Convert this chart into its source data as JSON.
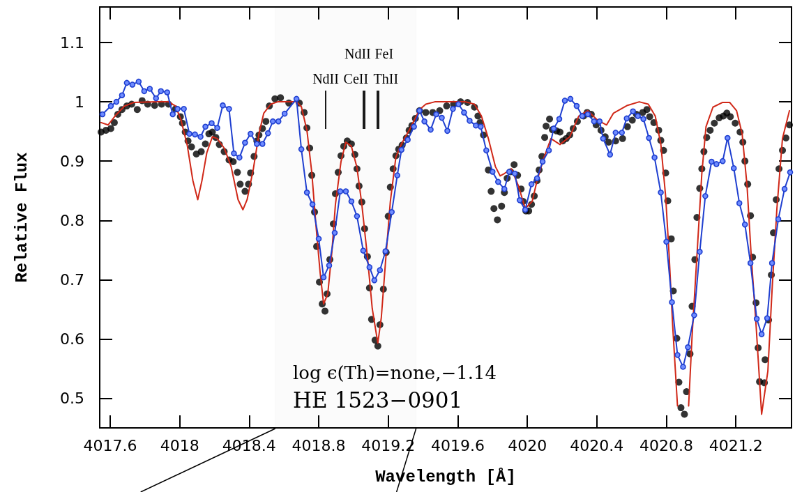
{
  "chart_data": {
    "type": "line",
    "xlabel": "Wavelength [Å]",
    "ylabel": "Relative Flux",
    "xlim": [
      4017.54,
      4021.52
    ],
    "ylim": [
      0.45,
      1.16
    ],
    "xticks": [
      4017.6,
      4018,
      4018.4,
      4018.8,
      4019.2,
      4019.6,
      4020,
      4020.4,
      4020.8,
      4021.2
    ],
    "yticks": [
      0.5,
      0.6,
      0.7,
      0.8,
      0.9,
      1,
      1.1
    ],
    "grid": false,
    "bands": [
      {
        "axis": "x",
        "from": 4018.55,
        "to": 4019.36,
        "color": "#000000"
      }
    ],
    "ref_lines": [
      {
        "axis": "x",
        "value": 4018.84,
        "label": "NdII"
      },
      {
        "axis": "x",
        "value": 4019.065,
        "label": "CeII"
      },
      {
        "axis": "x",
        "value": 4019.055,
        "label": "NdII"
      },
      {
        "axis": "x",
        "value": 4019.135,
        "label": "ThII"
      },
      {
        "axis": "x",
        "value": 4019.145,
        "label": "FeI"
      }
    ],
    "annotations": [
      "log ϵ(Th)=none,−1.14",
      "HE 1523−0901"
    ],
    "series": [
      {
        "color": "#d02818",
        "marker": "none",
        "line_style": "solid",
        "x": [
          4017.548,
          4017.588,
          4017.628,
          4017.684,
          4017.736,
          4017.868,
          4017.936,
          4017.976,
          4018.008,
          4018.044,
          4018.076,
          4018.104,
          4018.128,
          4018.156,
          4018.188,
          4018.216,
          4018.256,
          4018.296,
          4018.336,
          4018.364,
          4018.388,
          4018.424,
          4018.456,
          4018.484,
          4018.524,
          4018.564,
          4018.672,
          4018.7,
          4018.732,
          4018.76,
          4018.784,
          4018.808,
          4018.828,
          4018.852,
          4018.876,
          4018.896,
          4018.928,
          4018.956,
          4018.988,
          4019.02,
          4019.048,
          4019.08,
          4019.108,
          4019.14,
          4019.16,
          4019.184,
          4019.212,
          4019.244,
          4019.276,
          4019.32,
          4019.38,
          4019.416,
          4019.468,
          4019.644,
          4019.696,
          4019.736,
          4019.776,
          4019.816,
          4019.844,
          4019.868,
          4019.908,
          4019.948,
          4019.988,
          4020.028,
          4020.056,
          4020.096,
          4020.136,
          4020.188,
          4020.244,
          4020.296,
          4020.348,
          4020.404,
          4020.456,
          4020.496,
          4020.576,
          4020.644,
          4020.696,
          4020.736,
          4020.768,
          4020.796,
          4020.816,
          4020.836,
          4020.864,
          4020.876,
          4020.896,
          4020.916,
          4020.928,
          4020.948,
          4020.976,
          4021.004,
          4021.028,
          4021.068,
          4021.124,
          4021.164,
          4021.204,
          4021.236,
          4021.264,
          4021.288,
          4021.316,
          4021.348,
          4021.384,
          4021.408,
          4021.436,
          4021.468,
          4021.508
        ],
        "values": [
          0.965,
          0.961,
          0.976,
          0.993,
          0.999,
          1.0,
          1.0,
          0.993,
          0.969,
          0.926,
          0.867,
          0.835,
          0.867,
          0.914,
          0.941,
          0.938,
          0.922,
          0.891,
          0.835,
          0.818,
          0.835,
          0.887,
          0.946,
          0.981,
          0.996,
          1.0,
          1.0,
          0.992,
          0.952,
          0.881,
          0.792,
          0.712,
          0.659,
          0.676,
          0.748,
          0.827,
          0.899,
          0.932,
          0.925,
          0.889,
          0.827,
          0.739,
          0.651,
          0.593,
          0.636,
          0.729,
          0.832,
          0.907,
          0.929,
          0.952,
          0.987,
          0.996,
          1.0,
          1.0,
          0.996,
          0.976,
          0.938,
          0.891,
          0.875,
          0.879,
          0.887,
          0.859,
          0.82,
          0.832,
          0.867,
          0.906,
          0.938,
          0.928,
          0.941,
          0.976,
          0.985,
          0.969,
          0.961,
          0.981,
          0.994,
          1.0,
          0.996,
          0.976,
          0.929,
          0.84,
          0.741,
          0.624,
          0.487,
          null,
          null,
          null,
          0.487,
          0.605,
          0.741,
          0.879,
          0.958,
          0.991,
          0.999,
          0.999,
          0.985,
          0.946,
          0.859,
          0.741,
          0.624,
          0.473,
          0.546,
          0.682,
          0.82,
          0.938,
          0.985
        ]
      },
      {
        "type": "scatter",
        "color": "#000000",
        "marker": "circle",
        "x": [
          4017.548,
          4017.576,
          4017.604,
          4017.624,
          4017.644,
          4017.668,
          4017.696,
          4017.724,
          4017.756,
          4017.784,
          4017.816,
          4017.856,
          4017.896,
          4017.936,
          4017.976,
          4018.004,
          4018.016,
          4018.032,
          4018.048,
          4018.068,
          4018.096,
          4018.124,
          4018.148,
          4018.168,
          4018.188,
          4018.208,
          4018.228,
          4018.256,
          4018.284,
          4018.308,
          4018.332,
          4018.348,
          4018.376,
          4018.396,
          4018.408,
          4018.428,
          4018.444,
          4018.456,
          4018.476,
          4018.496,
          4018.516,
          4018.548,
          4018.58,
          4018.628,
          4018.688,
          4018.716,
          4018.732,
          4018.748,
          4018.76,
          4018.776,
          4018.788,
          4018.804,
          4018.82,
          4018.836,
          4018.848,
          4018.864,
          4018.884,
          4018.896,
          4018.912,
          4018.928,
          4018.944,
          4018.964,
          4018.988,
          4019.008,
          4019.02,
          4019.032,
          4019.048,
          4019.064,
          4019.08,
          4019.092,
          4019.104,
          4019.124,
          4019.14,
          4019.152,
          4019.172,
          4019.188,
          4019.2,
          4019.212,
          4019.228,
          4019.244,
          4019.26,
          4019.28,
          4019.304,
          4019.32,
          4019.336,
          4019.356,
          4019.38,
          4019.416,
          4019.456,
          4019.496,
          4019.536,
          4019.576,
          4019.616,
          4019.656,
          4019.696,
          4019.716,
          4019.728,
          4019.748,
          4019.776,
          4019.792,
          4019.808,
          4019.828,
          4019.852,
          4019.868,
          4019.884,
          4019.904,
          4019.924,
          4019.944,
          4019.964,
          4019.976,
          4019.992,
          4020.008,
          4020.024,
          4020.04,
          4020.056,
          4020.068,
          4020.084,
          4020.1,
          4020.108,
          4020.128,
          4020.144,
          4020.168,
          4020.188,
          4020.204,
          4020.224,
          4020.244,
          4020.264,
          4020.288,
          4020.324,
          4020.344,
          4020.368,
          4020.396,
          4020.424,
          4020.448,
          4020.468,
          4020.508,
          4020.548,
          4020.576,
          4020.604,
          4020.628,
          4020.664,
          4020.688,
          4020.704,
          4020.728,
          4020.756,
          4020.768,
          4020.784,
          4020.796,
          4020.808,
          4020.828,
          4020.84,
          4020.86,
          4020.872,
          4020.884,
          4020.904,
          4020.916,
          4020.936,
          4020.948,
          4020.964,
          4020.976,
          4020.992,
          4021.004,
          4021.016,
          4021.032,
          4021.052,
          4021.076,
          4021.104,
          4021.128,
          4021.148,
          4021.168,
          4021.196,
          4021.224,
          4021.24,
          4021.252,
          4021.268,
          4021.284,
          4021.296,
          4021.316,
          4021.328,
          4021.336,
          4021.364,
          4021.368,
          4021.388,
          4021.404,
          4021.416,
          4021.432,
          4021.448,
          4021.468,
          4021.488,
          4021.508
        ],
        "values": [
          0.949,
          0.952,
          0.955,
          0.965,
          0.979,
          0.987,
          0.993,
          0.996,
          0.987,
          1.002,
          0.996,
          0.994,
          0.996,
          0.996,
          0.988,
          0.975,
          0.964,
          0.949,
          0.934,
          0.924,
          0.912,
          0.916,
          0.929,
          0.946,
          0.949,
          0.94,
          0.928,
          0.916,
          0.902,
          0.899,
          0.881,
          0.861,
          0.849,
          0.861,
          0.88,
          0.908,
          0.934,
          0.944,
          0.955,
          0.967,
          0.993,
          1.005,
          1.007,
          0.998,
          0.998,
          0.982,
          0.956,
          0.922,
          0.876,
          0.814,
          0.756,
          0.696,
          0.659,
          0.647,
          0.676,
          0.734,
          0.794,
          0.845,
          0.881,
          0.909,
          0.925,
          0.934,
          0.929,
          0.911,
          0.887,
          0.858,
          0.831,
          0.786,
          0.739,
          0.686,
          0.633,
          0.598,
          0.588,
          0.624,
          0.684,
          0.746,
          0.807,
          0.856,
          0.887,
          0.909,
          0.92,
          0.927,
          0.939,
          0.952,
          0.96,
          0.972,
          0.985,
          0.982,
          0.982,
          0.985,
          0.993,
          0.996,
          1.0,
          0.999,
          0.991,
          0.976,
          0.965,
          0.944,
          0.885,
          0.849,
          0.82,
          0.801,
          0.824,
          0.847,
          0.871,
          0.882,
          0.894,
          0.876,
          0.853,
          0.832,
          0.816,
          0.816,
          0.827,
          0.841,
          0.867,
          0.885,
          0.908,
          0.94,
          0.959,
          0.971,
          0.953,
          0.951,
          0.949,
          0.934,
          0.938,
          0.944,
          0.955,
          0.967,
          0.976,
          0.982,
          0.979,
          0.961,
          0.952,
          0.941,
          0.932,
          0.934,
          0.938,
          0.958,
          0.969,
          0.979,
          0.982,
          0.987,
          0.975,
          0.965,
          0.952,
          0.935,
          0.918,
          0.88,
          0.833,
          0.769,
          0.681,
          0.601,
          0.527,
          0.484,
          0.473,
          0.511,
          0.575,
          0.655,
          0.734,
          0.805,
          0.854,
          0.887,
          0.916,
          0.94,
          0.952,
          0.964,
          0.973,
          0.976,
          0.981,
          0.975,
          0.964,
          0.949,
          0.932,
          0.9,
          0.861,
          0.808,
          0.738,
          0.661,
          0.585,
          0.528,
          0.526,
          0.565,
          0.632,
          0.708,
          0.779,
          0.835,
          0.887,
          0.918,
          0.939,
          0.961
        ]
      },
      {
        "color": "#1f3fd0",
        "marker": "circle",
        "line_style": "solid",
        "x": [
          4017.556,
          4017.604,
          4017.636,
          4017.668,
          4017.696,
          4017.728,
          4017.764,
          4017.796,
          4017.828,
          4017.864,
          4017.892,
          4017.928,
          4017.96,
          4017.988,
          4018.024,
          4018.056,
          4018.088,
          4018.12,
          4018.148,
          4018.184,
          4018.216,
          4018.248,
          4018.284,
          4018.312,
          4018.344,
          4018.376,
          4018.408,
          4018.444,
          4018.476,
          4018.508,
          4018.536,
          4018.568,
          4018.604,
          4018.672,
          4018.7,
          4018.732,
          4018.764,
          4018.8,
          4018.828,
          4018.86,
          4018.892,
          4018.924,
          4018.956,
          4018.988,
          4019.02,
          4019.056,
          4019.092,
          4019.12,
          4019.152,
          4019.184,
          4019.22,
          4019.252,
          4019.276,
          4019.312,
          4019.348,
          4019.38,
          4019.408,
          4019.444,
          4019.476,
          4019.508,
          4019.54,
          4019.572,
          4019.604,
          4019.636,
          4019.668,
          4019.704,
          4019.732,
          4019.764,
          4019.8,
          4019.832,
          4019.868,
          4019.896,
          4019.928,
          4019.956,
          4019.988,
          4020.024,
          4020.056,
          4020.088,
          4020.124,
          4020.152,
          4020.184,
          4020.216,
          4020.248,
          4020.284,
          4020.316,
          4020.348,
          4020.384,
          4020.416,
          4020.436,
          4020.476,
          4020.508,
          4020.544,
          4020.572,
          4020.608,
          4020.636,
          4020.668,
          4020.7,
          4020.732,
          4020.768,
          4020.8,
          4020.832,
          4020.864,
          4020.896,
          4020.924,
          4020.96,
          4020.992,
          4021.024,
          4021.06,
          4021.088,
          4021.124,
          4021.152,
          4021.188,
          4021.22,
          4021.252,
          4021.284,
          4021.32,
          4021.348,
          4021.38,
          4021.408,
          4021.444,
          4021.48,
          4021.512
        ],
        "values": [
          0.979,
          0.993,
          1.0,
          1.011,
          1.032,
          1.029,
          1.034,
          1.018,
          1.022,
          1.006,
          1.018,
          1.016,
          0.979,
          0.988,
          0.988,
          0.946,
          0.945,
          0.941,
          0.958,
          0.964,
          0.956,
          0.994,
          0.988,
          0.913,
          0.906,
          0.931,
          0.946,
          0.929,
          0.929,
          0.947,
          0.967,
          0.967,
          0.98,
          1.005,
          0.92,
          0.847,
          0.827,
          0.769,
          0.704,
          0.724,
          0.779,
          0.849,
          0.849,
          0.832,
          0.807,
          0.749,
          0.721,
          0.699,
          0.716,
          0.748,
          0.814,
          0.876,
          0.919,
          0.936,
          0.958,
          0.985,
          0.967,
          0.953,
          0.979,
          0.973,
          0.951,
          0.988,
          0.996,
          0.982,
          0.968,
          0.96,
          0.958,
          0.918,
          0.882,
          0.865,
          0.853,
          0.882,
          0.879,
          0.834,
          0.818,
          0.861,
          0.871,
          0.899,
          0.918,
          0.955,
          0.971,
          1.002,
          1.005,
          0.993,
          0.976,
          0.979,
          0.967,
          0.967,
          0.938,
          0.911,
          0.948,
          0.948,
          0.972,
          0.984,
          0.976,
          0.971,
          0.939,
          0.906,
          0.847,
          0.764,
          0.662,
          0.573,
          0.553,
          0.586,
          0.64,
          0.747,
          0.841,
          0.899,
          0.895,
          0.9,
          0.939,
          0.888,
          0.829,
          0.793,
          0.728,
          0.634,
          0.608,
          0.635,
          0.728,
          0.802,
          0.853,
          0.881
        ]
      }
    ]
  }
}
